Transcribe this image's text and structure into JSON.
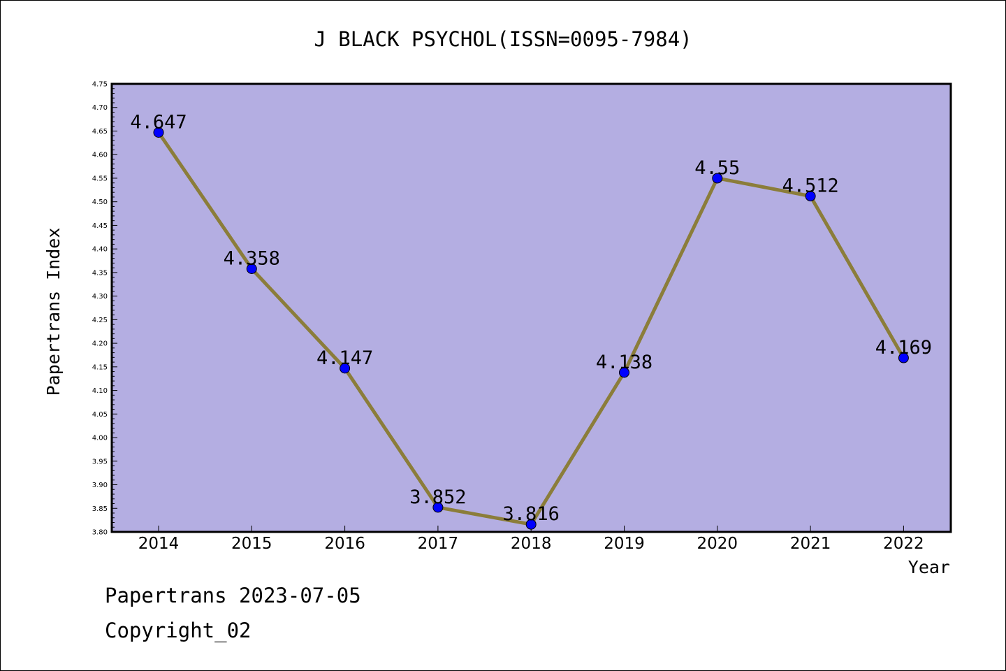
{
  "chart_data": {
    "type": "line",
    "title": "J BLACK PSYCHOL(ISSN=0095-7984)",
    "xlabel": "Year",
    "ylabel": "Papertrans Index",
    "categories": [
      "2014",
      "2015",
      "2016",
      "2017",
      "2018",
      "2019",
      "2020",
      "2021",
      "2022"
    ],
    "values": [
      4.647,
      4.358,
      4.147,
      3.852,
      3.816,
      4.138,
      4.55,
      4.512,
      4.169
    ],
    "data_labels": [
      "4.647",
      "4.358",
      "4.147",
      "3.852",
      "3.816",
      "4.138",
      "4.55",
      "4.512",
      "4.169"
    ],
    "ylim": [
      3.8,
      4.75
    ],
    "y_ticks": [
      "3.80",
      "3.85",
      "3.90",
      "3.95",
      "4.00",
      "4.05",
      "4.10",
      "4.15",
      "4.20",
      "4.25",
      "4.30",
      "4.35",
      "4.40",
      "4.45",
      "4.50",
      "4.55",
      "4.60",
      "4.65",
      "4.70",
      "4.75"
    ],
    "grid": false,
    "colors": {
      "plot_background": "#b4aee2",
      "line": "#8b7d3a",
      "marker": "#0000ff"
    }
  },
  "footer": {
    "line1": "Papertrans 2023-07-05",
    "line2": "Copyright_02"
  }
}
